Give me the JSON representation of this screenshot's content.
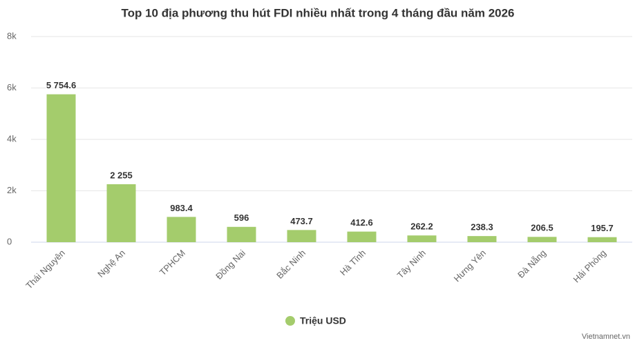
{
  "chart_data": {
    "type": "bar",
    "title": "Top 10 địa phương thu hút FDI nhiều nhất trong 4 tháng đầu năm 2026",
    "categories": [
      "Thái Nguyên",
      "Nghệ An",
      "TPHCM",
      "Đồng Nai",
      "Bắc Ninh",
      "Hà Tĩnh",
      "Tây Ninh",
      "Hưng Yên",
      "Đà Nẵng",
      "Hải Phòng"
    ],
    "series": [
      {
        "name": "Triệu USD",
        "color": "#a4cc6c",
        "values": [
          5754.6,
          2255,
          983.4,
          596,
          473.7,
          412.6,
          262.2,
          238.3,
          206.5,
          195.7
        ],
        "value_labels": [
          "5 754.6",
          "2 255",
          "983.4",
          "596",
          "473.7",
          "412.6",
          "262.2",
          "238.3",
          "206.5",
          "195.7"
        ]
      }
    ],
    "ylim": [
      0,
      8000
    ],
    "yticks": [
      0,
      {
        "value": 2000,
        "label": "2k"
      },
      {
        "value": 4000,
        "label": "4k"
      },
      {
        "value": 6000,
        "label": "6k"
      },
      {
        "value": 8000,
        "label": "8k"
      }
    ],
    "grid": true,
    "legend": "bottom",
    "credit": "Vietnamnet.vn"
  }
}
